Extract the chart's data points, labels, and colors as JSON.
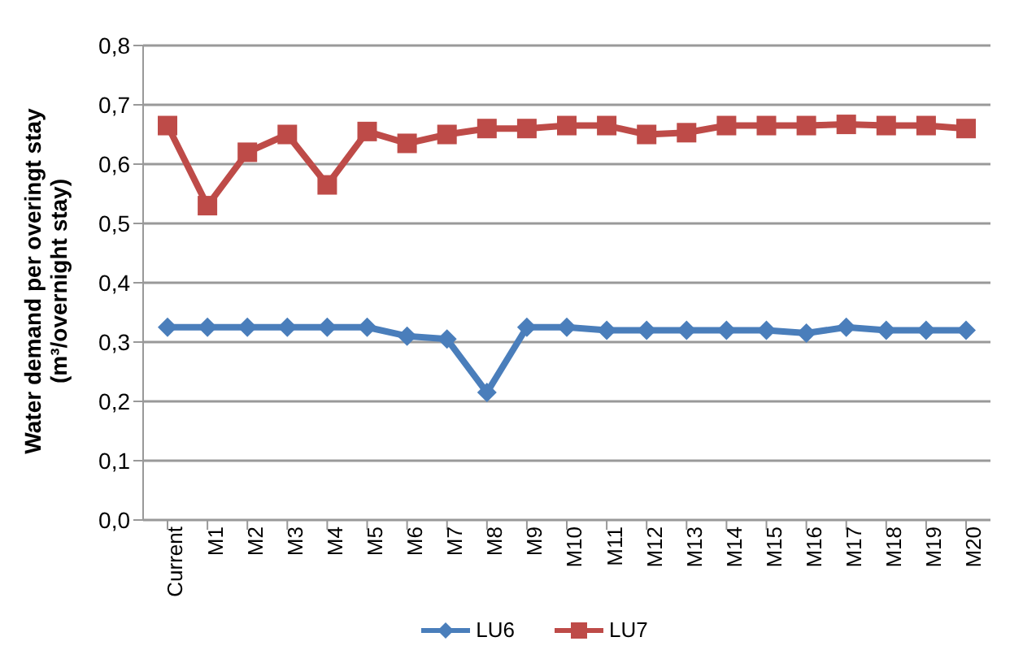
{
  "chart_data": {
    "type": "line",
    "ylabel": "Water demand per overingt stay (m³/overnight stay)",
    "categories": [
      "Current",
      "M1",
      "M2",
      "M3",
      "M4",
      "M5",
      "M6",
      "M7",
      "M8",
      "M9",
      "M10",
      "M11",
      "M12",
      "M13",
      "M14",
      "M15",
      "M16",
      "M17",
      "M18",
      "M19",
      "M20"
    ],
    "series": [
      {
        "name": "LU6",
        "color": "#4a7ebb",
        "marker": "diamond",
        "values": [
          0.325,
          0.325,
          0.325,
          0.325,
          0.325,
          0.325,
          0.31,
          0.305,
          0.215,
          0.325,
          0.325,
          0.32,
          0.32,
          0.32,
          0.32,
          0.32,
          0.315,
          0.325,
          0.32,
          0.32,
          0.32
        ]
      },
      {
        "name": "LU7",
        "color": "#be4b48",
        "marker": "square",
        "values": [
          0.665,
          0.53,
          0.62,
          0.65,
          0.565,
          0.655,
          0.635,
          0.65,
          0.66,
          0.66,
          0.665,
          0.665,
          0.65,
          0.653,
          0.665,
          0.665,
          0.665,
          0.667,
          0.665,
          0.665,
          0.66
        ]
      }
    ],
    "ylim": [
      0,
      0.8
    ],
    "yticks": [
      {
        "value": 0,
        "label": "0,0"
      },
      {
        "value": 0.1,
        "label": "0,1"
      },
      {
        "value": 0.2,
        "label": "0,2"
      },
      {
        "value": 0.3,
        "label": "0,3"
      },
      {
        "value": 0.4,
        "label": "0,4"
      },
      {
        "value": 0.5,
        "label": "0,5"
      },
      {
        "value": 0.6,
        "label": "0,6"
      },
      {
        "value": 0.7,
        "label": "0,7"
      },
      {
        "value": 0.8,
        "label": "0,8"
      }
    ],
    "grid": "y",
    "legend": "bottom",
    "line_style": "solid"
  }
}
